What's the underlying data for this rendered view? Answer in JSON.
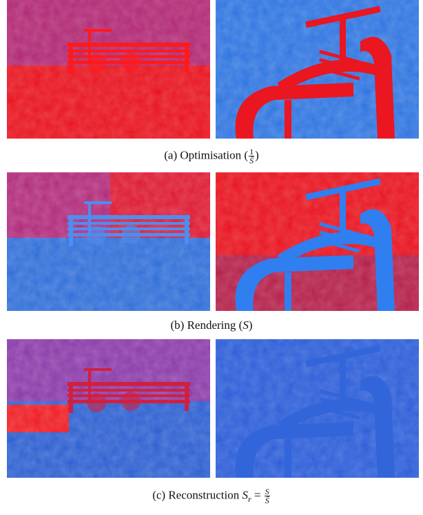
{
  "captions": [
    {
      "prefix": "(a) Optimisation (",
      "numerator": "1",
      "denominator": "Ŝ",
      "suffix": ")"
    },
    {
      "prefix": "(b) Rendering (",
      "symbol": "S",
      "suffix": ")"
    },
    {
      "prefix": "(c) Reconstruction ",
      "symbol": "S",
      "subscript": "r",
      "equals": " = ",
      "numerator": "S",
      "denominator": "Ŝ"
    }
  ]
}
